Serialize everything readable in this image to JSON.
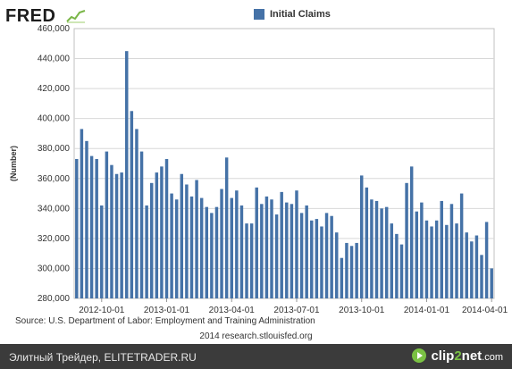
{
  "branding": {
    "logo": "FRED",
    "logo_icon": "sparkline-icon"
  },
  "legend": {
    "label": "Initial Claims",
    "color": "#4572a7"
  },
  "source": "Source: U.S. Department of Labor: Employment and Training Administration",
  "credit": "2014 research.stlouisfed.org",
  "footer": {
    "text": "Элитный Трейдер, ELITETRADER.RU",
    "logo_prefix": "clip",
    "logo_digit": "2",
    "logo_suffix": "net",
    "logo_tld": ".com",
    "logo_icon": "play-circle-icon"
  },
  "chart_data": {
    "type": "bar",
    "ylabel": "(Number)",
    "ylim": [
      280000,
      460000
    ],
    "yticks": [
      280000,
      300000,
      320000,
      340000,
      360000,
      380000,
      400000,
      420000,
      440000,
      460000
    ],
    "ytick_labels": [
      "280,000",
      "300,000",
      "320,000",
      "340,000",
      "360,000",
      "380,000",
      "400,000",
      "420,000",
      "440,000",
      "460,000"
    ],
    "xtick_labels": [
      "2012-10-01",
      "2013-01-01",
      "2013-04-01",
      "2013-07-01",
      "2013-10-01",
      "2014-01-01",
      "2014-04-01"
    ],
    "xtick_indices": [
      5,
      18,
      31,
      44,
      57,
      70,
      83
    ],
    "grid": true,
    "legend_position": "top-center",
    "series": [
      {
        "name": "Initial Claims",
        "color": "#4572a7",
        "values": [
          373000,
          393000,
          385000,
          375000,
          373000,
          342000,
          378000,
          369000,
          363000,
          364000,
          445000,
          405000,
          393000,
          378000,
          342000,
          357000,
          364000,
          368000,
          373000,
          350000,
          346000,
          363000,
          356000,
          348000,
          359000,
          347000,
          341000,
          337000,
          341000,
          353000,
          374000,
          347000,
          352000,
          342000,
          330000,
          330000,
          354000,
          343000,
          348000,
          346000,
          336000,
          351000,
          344000,
          343000,
          352000,
          337000,
          342000,
          332000,
          333000,
          328000,
          337000,
          335000,
          324000,
          307000,
          317000,
          315000,
          317000,
          362000,
          354000,
          346000,
          345000,
          340000,
          341000,
          330000,
          323000,
          316000,
          357000,
          368000,
          338000,
          344000,
          332000,
          328000,
          332000,
          345000,
          329000,
          343000,
          330000,
          350000,
          324000,
          318000,
          322000,
          309000,
          331000,
          300000
        ]
      }
    ]
  }
}
